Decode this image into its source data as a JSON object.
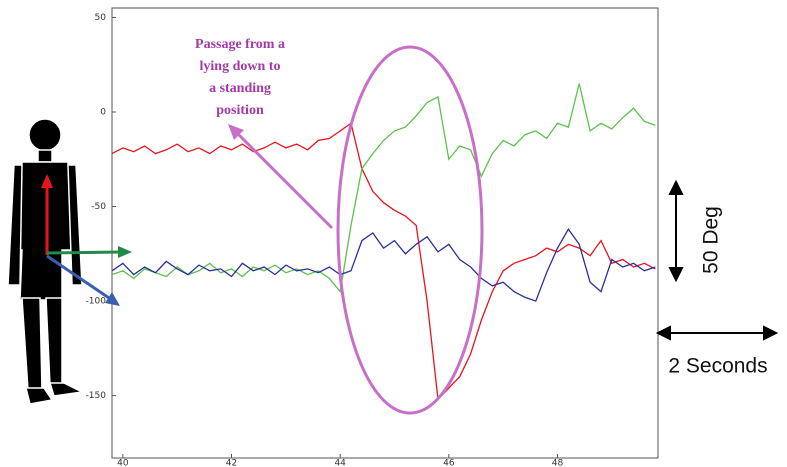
{
  "chart_data": {
    "type": "line",
    "x": [
      39.8,
      40.0,
      40.2,
      40.4,
      40.6,
      40.8,
      41.0,
      41.2,
      41.4,
      41.6,
      41.8,
      42.0,
      42.2,
      42.4,
      42.6,
      42.8,
      43.0,
      43.2,
      43.4,
      43.6,
      43.8,
      44.0,
      44.2,
      44.4,
      44.6,
      44.8,
      45.0,
      45.2,
      45.4,
      45.6,
      45.8,
      46.0,
      46.2,
      46.4,
      46.6,
      46.8,
      47.0,
      47.2,
      47.4,
      47.6,
      47.8,
      48.0,
      48.2,
      48.4,
      48.6,
      48.8,
      49.0,
      49.2,
      49.4,
      49.6,
      49.8
    ],
    "series": [
      {
        "color": "#e8141c",
        "values": [
          -22,
          -19,
          -21,
          -18,
          -22,
          -20,
          -17,
          -21,
          -19,
          -22,
          -18,
          -20,
          -17,
          -21,
          -19,
          -16,
          -19,
          -17,
          -20,
          -15,
          -14,
          -10,
          -6,
          -30,
          -42,
          -48,
          -52,
          -55,
          -60,
          -100,
          -152,
          -146,
          -140,
          -128,
          -110,
          -95,
          -84,
          -80,
          -78,
          -76,
          -72,
          -74,
          -70,
          -72,
          -76,
          -68,
          -80,
          -78,
          -82,
          -80,
          -83
        ]
      },
      {
        "color": "#5cc24a",
        "values": [
          -86,
          -84,
          -88,
          -83,
          -85,
          -87,
          -82,
          -86,
          -84,
          -80,
          -85,
          -83,
          -87,
          -82,
          -84,
          -81,
          -85,
          -83,
          -86,
          -84,
          -88,
          -95,
          -60,
          -30,
          -22,
          -15,
          -10,
          -8,
          -2,
          5,
          8,
          -25,
          -18,
          -20,
          -34,
          -22,
          -15,
          -18,
          -12,
          -10,
          -14,
          -6,
          -8,
          15,
          -10,
          -6,
          -9,
          -3,
          2,
          -5,
          -7
        ]
      },
      {
        "color": "#2b2f9e",
        "values": [
          -84,
          -80,
          -86,
          -82,
          -85,
          -79,
          -83,
          -86,
          -81,
          -84,
          -83,
          -87,
          -80,
          -84,
          -82,
          -86,
          -81,
          -84,
          -83,
          -85,
          -82,
          -86,
          -84,
          -68,
          -64,
          -72,
          -68,
          -75,
          -70,
          -66,
          -74,
          -70,
          -78,
          -82,
          -88,
          -92,
          -90,
          -95,
          -98,
          -100,
          -85,
          -72,
          -62,
          -70,
          -90,
          -95,
          -78,
          -82,
          -80,
          -84,
          -82
        ]
      }
    ],
    "xlim": [
      39.8,
      49.85
    ],
    "xticks": [
      40,
      42,
      44,
      46,
      48
    ],
    "ylim": [
      -183,
      55
    ],
    "yticks": [
      50,
      0,
      -50,
      -100,
      -150
    ],
    "annotation": [
      "Passage from a",
      "lying down to",
      "a standing",
      "position"
    ],
    "scale_y_label": "50 Deg",
    "scale_x_label": "2 Seconds"
  }
}
